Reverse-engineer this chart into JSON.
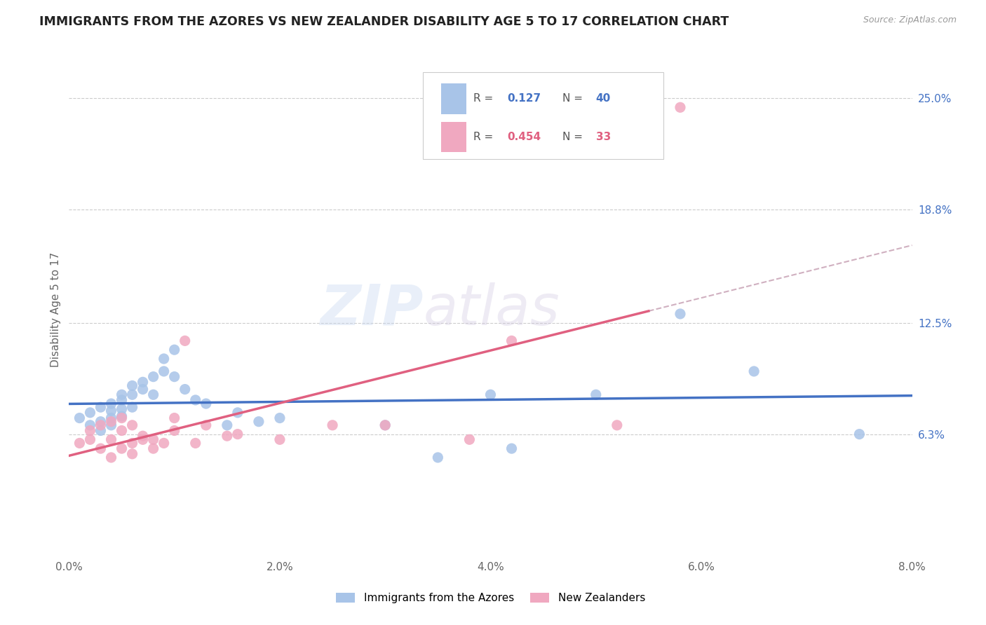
{
  "title": "IMMIGRANTS FROM THE AZORES VS NEW ZEALANDER DISABILITY AGE 5 TO 17 CORRELATION CHART",
  "source": "Source: ZipAtlas.com",
  "ylabel": "Disability Age 5 to 17",
  "ytick_labels": [
    "6.3%",
    "12.5%",
    "18.8%",
    "25.0%"
  ],
  "ytick_values": [
    0.063,
    0.125,
    0.188,
    0.25
  ],
  "xlim": [
    0.0,
    0.08
  ],
  "ylim": [
    -0.005,
    0.27
  ],
  "legend1_R": "0.127",
  "legend1_N": "40",
  "legend2_R": "0.454",
  "legend2_N": "33",
  "color_blue": "#a8c4e8",
  "color_pink": "#f0a8c0",
  "color_blue_line": "#4472c4",
  "color_pink_line": "#e06080",
  "color_dashed_line": "#d0b0c0",
  "watermark": "ZIPatlas",
  "azores_x": [
    0.001,
    0.002,
    0.002,
    0.003,
    0.003,
    0.003,
    0.004,
    0.004,
    0.004,
    0.004,
    0.005,
    0.005,
    0.005,
    0.005,
    0.006,
    0.006,
    0.006,
    0.007,
    0.007,
    0.008,
    0.008,
    0.009,
    0.009,
    0.01,
    0.01,
    0.011,
    0.012,
    0.013,
    0.015,
    0.016,
    0.018,
    0.02,
    0.03,
    0.035,
    0.04,
    0.042,
    0.05,
    0.058,
    0.065,
    0.075
  ],
  "azores_y": [
    0.072,
    0.075,
    0.068,
    0.078,
    0.07,
    0.065,
    0.08,
    0.076,
    0.072,
    0.068,
    0.085,
    0.082,
    0.077,
    0.073,
    0.09,
    0.085,
    0.078,
    0.092,
    0.088,
    0.095,
    0.085,
    0.105,
    0.098,
    0.11,
    0.095,
    0.088,
    0.082,
    0.08,
    0.068,
    0.075,
    0.07,
    0.072,
    0.068,
    0.05,
    0.085,
    0.055,
    0.085,
    0.13,
    0.098,
    0.063
  ],
  "nz_x": [
    0.001,
    0.002,
    0.002,
    0.003,
    0.003,
    0.004,
    0.004,
    0.004,
    0.005,
    0.005,
    0.005,
    0.006,
    0.006,
    0.006,
    0.007,
    0.007,
    0.008,
    0.008,
    0.009,
    0.01,
    0.01,
    0.011,
    0.012,
    0.013,
    0.015,
    0.016,
    0.02,
    0.025,
    0.03,
    0.038,
    0.042,
    0.052,
    0.058
  ],
  "nz_y": [
    0.058,
    0.065,
    0.06,
    0.068,
    0.055,
    0.07,
    0.06,
    0.05,
    0.065,
    0.072,
    0.055,
    0.058,
    0.068,
    0.052,
    0.06,
    0.062,
    0.055,
    0.06,
    0.058,
    0.065,
    0.072,
    0.115,
    0.058,
    0.068,
    0.062,
    0.063,
    0.06,
    0.068,
    0.068,
    0.06,
    0.115,
    0.068,
    0.245
  ]
}
